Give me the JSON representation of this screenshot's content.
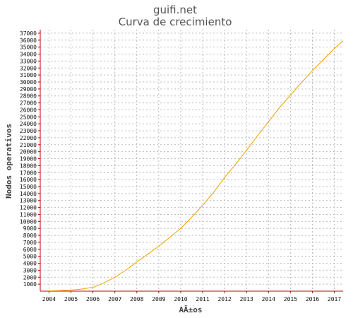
{
  "chart_data": {
    "type": "line",
    "title": "guifi.net",
    "subtitle": "Curva de crecimiento",
    "xlabel": "AÃ±os",
    "ylabel": "Nodos operativos",
    "xlim": [
      2003.6,
      2017.4
    ],
    "ylim": [
      0,
      37500
    ],
    "x_ticks": [
      "2004",
      "2005",
      "2006",
      "2007",
      "2008",
      "2009",
      "2010",
      "2011",
      "2012",
      "2013",
      "2014",
      "2015",
      "2016",
      "2017"
    ],
    "y_ticks": [
      1000,
      2000,
      3000,
      4000,
      5000,
      6000,
      7000,
      8000,
      9000,
      10000,
      11000,
      12000,
      13000,
      14000,
      15000,
      16000,
      17000,
      18000,
      19000,
      20000,
      21000,
      22000,
      23000,
      24000,
      25000,
      26000,
      27000,
      28000,
      29000,
      30000,
      31000,
      32000,
      33000,
      34000,
      35000,
      36000,
      37000
    ],
    "grid": true,
    "colors": {
      "line": "#f0a000",
      "axis": "#cc0000",
      "grid": "#bbbbbb"
    },
    "series": [
      {
        "x": [
          2004.0,
          2004.5,
          2005.0,
          2005.5,
          2006.0,
          2006.3,
          2006.6,
          2007.0,
          2007.5,
          2008.0,
          2008.5,
          2009.0,
          2009.5,
          2010.0,
          2010.5,
          2011.0,
          2011.5,
          2012.0,
          2012.5,
          2013.0,
          2013.5,
          2014.0,
          2014.5,
          2015.0,
          2015.5,
          2016.0,
          2016.5,
          2017.0,
          2017.4
        ],
        "y": [
          40,
          70,
          150,
          300,
          550,
          900,
          1350,
          2000,
          3000,
          4200,
          5300,
          6450,
          7700,
          9000,
          10600,
          12300,
          14200,
          16300,
          18200,
          20200,
          22300,
          24300,
          26300,
          28100,
          29900,
          31600,
          33200,
          34800,
          35900
        ]
      }
    ]
  }
}
